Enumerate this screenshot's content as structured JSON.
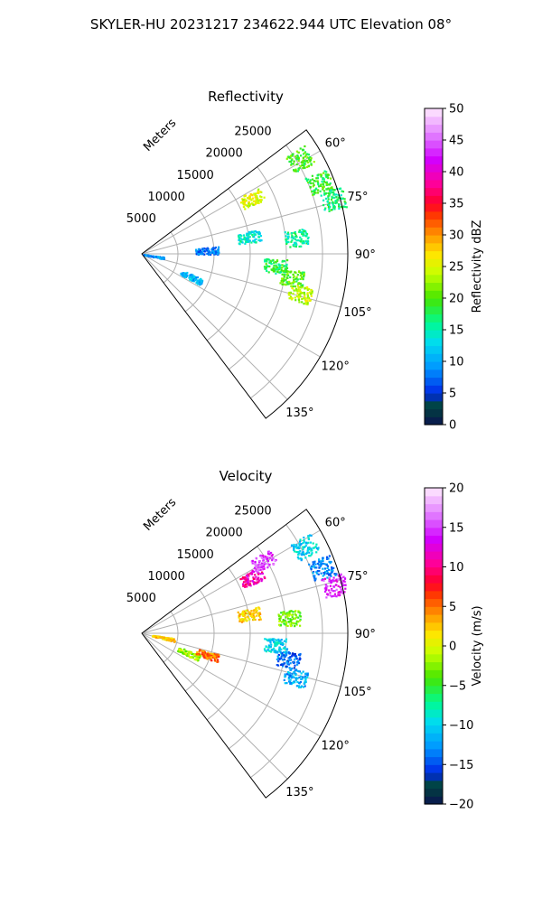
{
  "figure": {
    "title": "SKYLER-HU  20231217  234622.944 UTC Elevation 08°"
  },
  "chart_data": [
    {
      "type": "polar-sector",
      "title": "Reflectivity",
      "radial_label": "Meters",
      "r_ticks": [
        "5000",
        "10000",
        "15000",
        "20000",
        "25000"
      ],
      "theta_ticks": [
        "60°",
        "75°",
        "90°",
        "105°",
        "120°",
        "135°"
      ],
      "theta_range_deg": [
        53,
        143
      ],
      "r_max": 28500,
      "colorbar": {
        "label": "Reflectivity dBZ",
        "min": 0,
        "max": 50,
        "ticks": [
          "0",
          "5",
          "10",
          "15",
          "20",
          "25",
          "30",
          "35",
          "40",
          "45",
          "50"
        ]
      },
      "echo_regions": [
        {
          "az": 63,
          "r": 17000,
          "value": 25
        },
        {
          "az": 59,
          "r": 25500,
          "value": 20
        },
        {
          "az": 68,
          "r": 26500,
          "value": 19
        },
        {
          "az": 74,
          "r": 27500,
          "value": 17
        },
        {
          "az": 81,
          "r": 15000,
          "value": 14
        },
        {
          "az": 84,
          "r": 21500,
          "value": 16
        },
        {
          "az": 87,
          "r": 9000,
          "value": 8
        },
        {
          "az": 95,
          "r": 18500,
          "value": 18
        },
        {
          "az": 99,
          "r": 21000,
          "value": 20
        },
        {
          "az": 104,
          "r": 22500,
          "value": 24
        },
        {
          "az": 115,
          "r": 7500,
          "value": 11
        },
        {
          "az": 100,
          "r": 1500,
          "value": 9
        }
      ]
    },
    {
      "type": "polar-sector",
      "title": "Velocity",
      "radial_label": "Meters",
      "r_ticks": [
        "5000",
        "10000",
        "15000",
        "20000",
        "25000"
      ],
      "theta_ticks": [
        "60°",
        "75°",
        "90°",
        "105°",
        "120°",
        "135°"
      ],
      "theta_range_deg": [
        53,
        143
      ],
      "r_max": 28500,
      "colorbar": {
        "label": "Velocity (m/s)",
        "min": -20,
        "max": 20,
        "ticks": [
          "−20",
          "−15",
          "−10",
          "−5",
          "0",
          "5",
          "10",
          "15",
          "20"
        ]
      },
      "echo_regions": [
        {
          "az": 63,
          "r": 17000,
          "value": 11
        },
        {
          "az": 59,
          "r": 19500,
          "value": 15
        },
        {
          "az": 62,
          "r": 25500,
          "value": -10
        },
        {
          "az": 70,
          "r": 26500,
          "value": -13
        },
        {
          "az": 76,
          "r": 27500,
          "value": 14
        },
        {
          "az": 80,
          "r": 15000,
          "value": 2
        },
        {
          "az": 84,
          "r": 20500,
          "value": -3
        },
        {
          "az": 95,
          "r": 18500,
          "value": -10
        },
        {
          "az": 100,
          "r": 20500,
          "value": -14
        },
        {
          "az": 106,
          "r": 22000,
          "value": -12
        },
        {
          "az": 113,
          "r": 7000,
          "value": -2
        },
        {
          "az": 108,
          "r": 9500,
          "value": 5
        },
        {
          "az": 101,
          "r": 3000,
          "value": 2
        }
      ]
    }
  ]
}
